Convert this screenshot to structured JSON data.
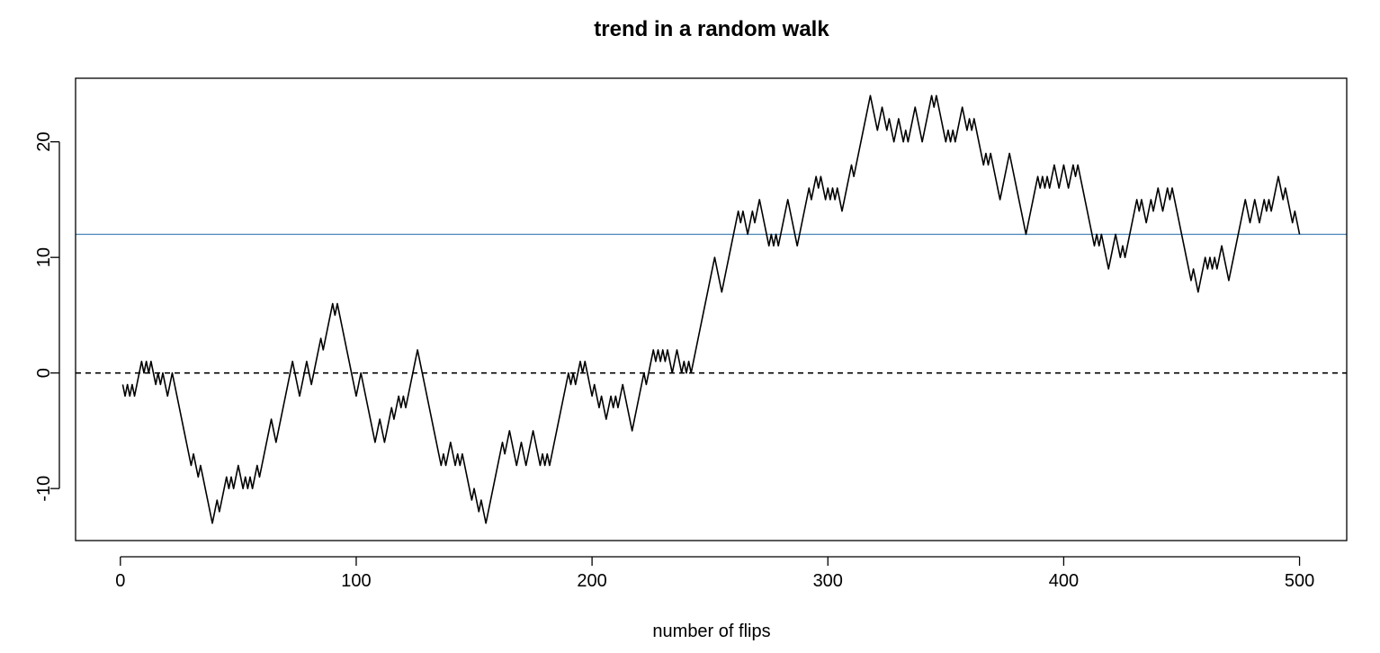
{
  "chart_data": {
    "type": "line",
    "title": "trend in a random walk",
    "xlabel": "number of flips",
    "ylabel": "",
    "xlim": [
      -19,
      520
    ],
    "ylim": [
      -14.5,
      25.5
    ],
    "xticks": [
      0,
      100,
      200,
      300,
      400,
      500
    ],
    "yticks": [
      -10,
      0,
      10,
      20
    ],
    "grid": false,
    "reference_lines": [
      {
        "type": "h",
        "y": 0,
        "style": "dashed",
        "color": "#000000"
      },
      {
        "type": "h",
        "y": 12,
        "style": "solid",
        "color": "#4682b4"
      }
    ],
    "series": [
      {
        "color": "#000000",
        "x": [
          1,
          2,
          3,
          4,
          5,
          6,
          7,
          8,
          9,
          10,
          11,
          12,
          13,
          14,
          15,
          16,
          17,
          18,
          19,
          20,
          21,
          22,
          23,
          24,
          25,
          26,
          27,
          28,
          29,
          30,
          31,
          32,
          33,
          34,
          35,
          36,
          37,
          38,
          39,
          40,
          41,
          42,
          43,
          44,
          45,
          46,
          47,
          48,
          49,
          50,
          51,
          52,
          53,
          54,
          55,
          56,
          57,
          58,
          59,
          60,
          61,
          62,
          63,
          64,
          65,
          66,
          67,
          68,
          69,
          70,
          71,
          72,
          73,
          74,
          75,
          76,
          77,
          78,
          79,
          80,
          81,
          82,
          83,
          84,
          85,
          86,
          87,
          88,
          89,
          90,
          91,
          92,
          93,
          94,
          95,
          96,
          97,
          98,
          99,
          100,
          101,
          102,
          103,
          104,
          105,
          106,
          107,
          108,
          109,
          110,
          111,
          112,
          113,
          114,
          115,
          116,
          117,
          118,
          119,
          120,
          121,
          122,
          123,
          124,
          125,
          126,
          127,
          128,
          129,
          130,
          131,
          132,
          133,
          134,
          135,
          136,
          137,
          138,
          139,
          140,
          141,
          142,
          143,
          144,
          145,
          146,
          147,
          148,
          149,
          150,
          151,
          152,
          153,
          154,
          155,
          156,
          157,
          158,
          159,
          160,
          161,
          162,
          163,
          164,
          165,
          166,
          167,
          168,
          169,
          170,
          171,
          172,
          173,
          174,
          175,
          176,
          177,
          178,
          179,
          180,
          181,
          182,
          183,
          184,
          185,
          186,
          187,
          188,
          189,
          190,
          191,
          192,
          193,
          194,
          195,
          196,
          197,
          198,
          199,
          200,
          201,
          202,
          203,
          204,
          205,
          206,
          207,
          208,
          209,
          210,
          211,
          212,
          213,
          214,
          215,
          216,
          217,
          218,
          219,
          220,
          221,
          222,
          223,
          224,
          225,
          226,
          227,
          228,
          229,
          230,
          231,
          232,
          233,
          234,
          235,
          236,
          237,
          238,
          239,
          240,
          241,
          242,
          243,
          244,
          245,
          246,
          247,
          248,
          249,
          250,
          251,
          252,
          253,
          254,
          255,
          256,
          257,
          258,
          259,
          260,
          261,
          262,
          263,
          264,
          265,
          266,
          267,
          268,
          269,
          270,
          271,
          272,
          273,
          274,
          275,
          276,
          277,
          278,
          279,
          280,
          281,
          282,
          283,
          284,
          285,
          286,
          287,
          288,
          289,
          290,
          291,
          292,
          293,
          294,
          295,
          296,
          297,
          298,
          299,
          300,
          301,
          302,
          303,
          304,
          305,
          306,
          307,
          308,
          309,
          310,
          311,
          312,
          313,
          314,
          315,
          316,
          317,
          318,
          319,
          320,
          321,
          322,
          323,
          324,
          325,
          326,
          327,
          328,
          329,
          330,
          331,
          332,
          333,
          334,
          335,
          336,
          337,
          338,
          339,
          340,
          341,
          342,
          343,
          344,
          345,
          346,
          347,
          348,
          349,
          350,
          351,
          352,
          353,
          354,
          355,
          356,
          357,
          358,
          359,
          360,
          361,
          362,
          363,
          364,
          365,
          366,
          367,
          368,
          369,
          370,
          371,
          372,
          373,
          374,
          375,
          376,
          377,
          378,
          379,
          380,
          381,
          382,
          383,
          384,
          385,
          386,
          387,
          388,
          389,
          390,
          391,
          392,
          393,
          394,
          395,
          396,
          397,
          398,
          399,
          400,
          401,
          402,
          403,
          404,
          405,
          406,
          407,
          408,
          409,
          410,
          411,
          412,
          413,
          414,
          415,
          416,
          417,
          418,
          419,
          420,
          421,
          422,
          423,
          424,
          425,
          426,
          427,
          428,
          429,
          430,
          431,
          432,
          433,
          434,
          435,
          436,
          437,
          438,
          439,
          440,
          441,
          442,
          443,
          444,
          445,
          446,
          447,
          448,
          449,
          450,
          451,
          452,
          453,
          454,
          455,
          456,
          457,
          458,
          459,
          460,
          461,
          462,
          463,
          464,
          465,
          466,
          467,
          468,
          469,
          470,
          471,
          472,
          473,
          474,
          475,
          476,
          477,
          478,
          479,
          480,
          481,
          482,
          483,
          484,
          485,
          486,
          487,
          488,
          489,
          490,
          491,
          492,
          493,
          494,
          495,
          496,
          497,
          498,
          499,
          500
        ],
        "y": [
          -1,
          -2,
          -1,
          -2,
          -1,
          -2,
          -1,
          0,
          1,
          0,
          1,
          0,
          1,
          0,
          -1,
          0,
          -1,
          0,
          -1,
          -2,
          -1,
          0,
          -1,
          -2,
          -3,
          -4,
          -5,
          -6,
          -7,
          -8,
          -7,
          -8,
          -9,
          -8,
          -9,
          -10,
          -11,
          -12,
          -13,
          -12,
          -11,
          -12,
          -11,
          -10,
          -9,
          -10,
          -9,
          -10,
          -9,
          -8,
          -9,
          -10,
          -9,
          -10,
          -9,
          -10,
          -9,
          -8,
          -9,
          -8,
          -7,
          -6,
          -5,
          -4,
          -5,
          -6,
          -5,
          -4,
          -3,
          -2,
          -1,
          0,
          1,
          0,
          -1,
          -2,
          -1,
          0,
          1,
          0,
          -1,
          0,
          1,
          2,
          3,
          2,
          3,
          4,
          5,
          6,
          5,
          6,
          5,
          4,
          3,
          2,
          1,
          0,
          -1,
          -2,
          -1,
          0,
          -1,
          -2,
          -3,
          -4,
          -5,
          -6,
          -5,
          -4,
          -5,
          -6,
          -5,
          -4,
          -3,
          -4,
          -3,
          -2,
          -3,
          -2,
          -3,
          -2,
          -1,
          0,
          1,
          2,
          1,
          0,
          -1,
          -2,
          -3,
          -4,
          -5,
          -6,
          -7,
          -8,
          -7,
          -8,
          -7,
          -6,
          -7,
          -8,
          -7,
          -8,
          -7,
          -8,
          -9,
          -10,
          -11,
          -10,
          -11,
          -12,
          -11,
          -12,
          -13,
          -12,
          -11,
          -10,
          -9,
          -8,
          -7,
          -6,
          -7,
          -6,
          -5,
          -6,
          -7,
          -8,
          -7,
          -6,
          -7,
          -8,
          -7,
          -6,
          -5,
          -6,
          -7,
          -8,
          -7,
          -8,
          -7,
          -8,
          -7,
          -6,
          -5,
          -4,
          -3,
          -2,
          -1,
          0,
          -1,
          0,
          -1,
          0,
          1,
          0,
          1,
          0,
          -1,
          -2,
          -1,
          -2,
          -3,
          -2,
          -3,
          -4,
          -3,
          -2,
          -3,
          -2,
          -3,
          -2,
          -1,
          -2,
          -3,
          -4,
          -5,
          -4,
          -3,
          -2,
          -1,
          0,
          -1,
          0,
          1,
          2,
          1,
          2,
          1,
          2,
          1,
          2,
          1,
          0,
          1,
          2,
          1,
          0,
          1,
          0,
          1,
          0,
          1,
          2,
          3,
          4,
          5,
          6,
          7,
          8,
          9,
          10,
          9,
          8,
          7,
          8,
          9,
          10,
          11,
          12,
          13,
          14,
          13,
          14,
          13,
          12,
          13,
          14,
          13,
          14,
          15,
          14,
          13,
          12,
          11,
          12,
          11,
          12,
          11,
          12,
          13,
          14,
          15,
          14,
          13,
          12,
          11,
          12,
          13,
          14,
          15,
          16,
          15,
          16,
          17,
          16,
          17,
          16,
          15,
          16,
          15,
          16,
          15,
          16,
          15,
          14,
          15,
          16,
          17,
          18,
          17,
          18,
          19,
          20,
          21,
          22,
          23,
          24,
          23,
          22,
          21,
          22,
          23,
          22,
          21,
          22,
          21,
          20,
          21,
          22,
          21,
          20,
          21,
          20,
          21,
          22,
          23,
          22,
          21,
          20,
          21,
          22,
          23,
          24,
          23,
          24,
          23,
          22,
          21,
          20,
          21,
          20,
          21,
          20,
          21,
          22,
          23,
          22,
          21,
          22,
          21,
          22,
          21,
          20,
          19,
          18,
          19,
          18,
          19,
          18,
          17,
          16,
          15,
          16,
          17,
          18,
          19,
          18,
          17,
          16,
          15,
          14,
          13,
          12,
          13,
          14,
          15,
          16,
          17,
          16,
          17,
          16,
          17,
          16,
          17,
          18,
          17,
          16,
          17,
          18,
          17,
          16,
          17,
          18,
          17,
          18,
          17,
          16,
          15,
          14,
          13,
          12,
          11,
          12,
          11,
          12,
          11,
          10,
          9,
          10,
          11,
          12,
          11,
          10,
          11,
          10,
          11,
          12,
          13,
          14,
          15,
          14,
          15,
          14,
          13,
          14,
          15,
          14,
          15,
          16,
          15,
          14,
          15,
          16,
          15,
          16,
          15,
          14,
          13,
          12,
          11,
          10,
          9,
          8,
          9,
          8,
          7,
          8,
          9,
          10,
          9,
          10,
          9,
          10,
          9,
          10,
          11,
          10,
          9,
          8,
          9,
          10,
          11,
          12,
          13,
          14,
          15,
          14,
          13,
          14,
          15,
          14,
          13,
          14,
          15,
          14,
          15,
          14,
          15,
          16,
          17,
          16,
          15,
          16,
          15,
          14,
          13,
          14,
          13,
          12
        ]
      }
    ]
  }
}
